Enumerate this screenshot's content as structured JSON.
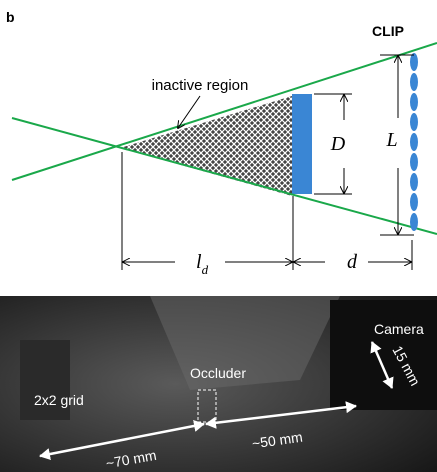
{
  "panel_label": "b",
  "diagram": {
    "clip_label": "CLIP",
    "region_label": "inactive region",
    "D_label": "D",
    "L_label": "L",
    "ld_label": "l",
    "ld_subscript": "d",
    "d_label": "d"
  },
  "photo": {
    "camera_label": "Camera",
    "camera_size": "15 mm",
    "occluder_label": "Occluder",
    "grid_label": "2x2 grid",
    "dist_occluder_camera": "~50 mm",
    "dist_grid_occluder": "~70 mm"
  }
}
